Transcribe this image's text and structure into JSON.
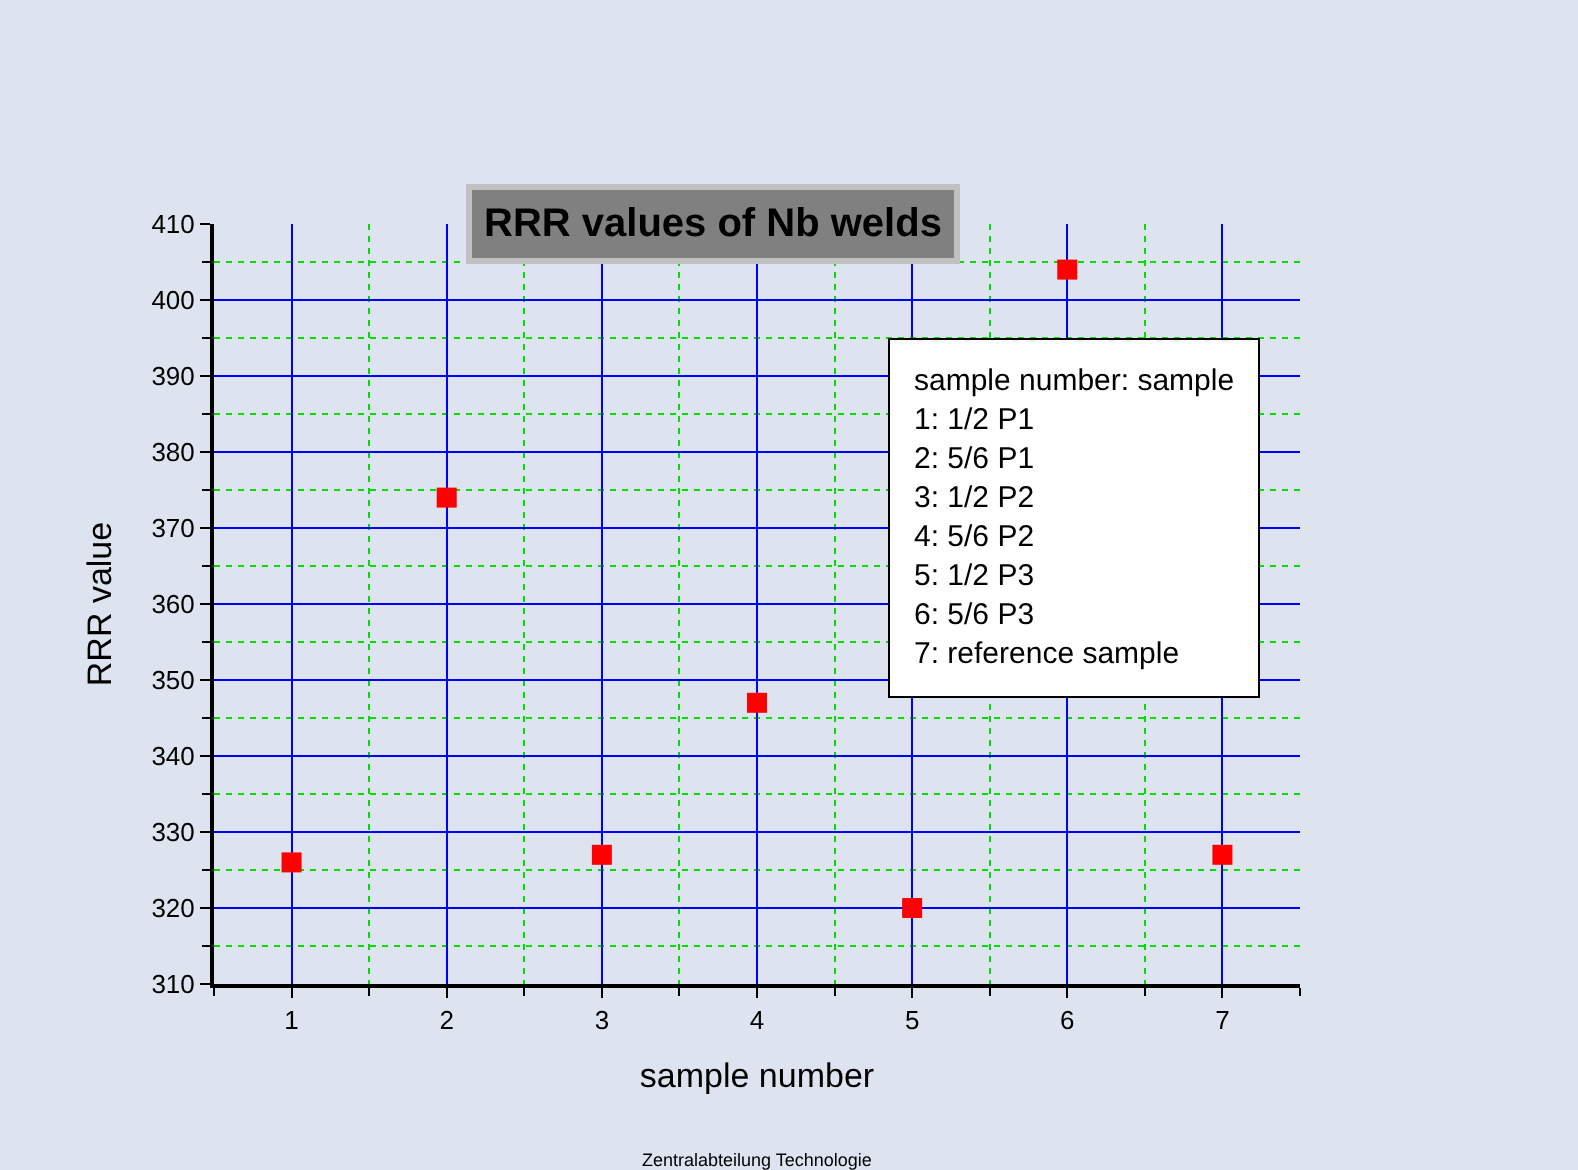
{
  "chart_data": {
    "type": "scatter",
    "title": "RRR values of Nb welds",
    "xlabel": "sample number",
    "ylabel": "RRR value",
    "x": [
      1,
      2,
      3,
      4,
      5,
      6,
      7
    ],
    "series": [
      {
        "color": "#ff0000",
        "values": [
          326,
          374,
          327,
          347,
          320,
          404,
          327
        ]
      }
    ],
    "xlim": [
      0.5,
      7.5
    ],
    "xticks": [
      {
        "value": 0.5,
        "label": null
      },
      1,
      {
        "value": 1.5,
        "label": null
      },
      2,
      {
        "value": 2.5,
        "label": null
      },
      3,
      {
        "value": 3.5,
        "label": null
      },
      4,
      {
        "value": 4.5,
        "label": null
      },
      5,
      {
        "value": 5.5,
        "label": null
      },
      6,
      {
        "value": 6.5,
        "label": null
      },
      7,
      {
        "value": 7.5,
        "label": null
      }
    ],
    "ylim": [
      310,
      410
    ],
    "yticks": [
      310,
      {
        "value": 315,
        "label": null
      },
      320,
      {
        "value": 325,
        "label": null
      },
      330,
      {
        "value": 335,
        "label": null
      },
      340,
      {
        "value": 345,
        "label": null
      },
      350,
      {
        "value": 355,
        "label": null
      },
      360,
      {
        "value": 365,
        "label": null
      },
      370,
      {
        "value": 375,
        "label": null
      },
      380,
      {
        "value": 385,
        "label": null
      },
      390,
      {
        "value": 395,
        "label": null
      },
      400,
      {
        "value": 405,
        "label": null
      },
      410
    ],
    "grid": true,
    "marker": "square",
    "legend": false,
    "annotations": [
      "sample number: sample\n1: 1/2 P1\n2: 5/6 P1\n3: 1/2 P2\n4: 5/6 P2\n5: 1/2 P3\n6: 5/6 P3\n7: reference sample",
      "Zentralabteilung Technologie"
    ]
  }
}
